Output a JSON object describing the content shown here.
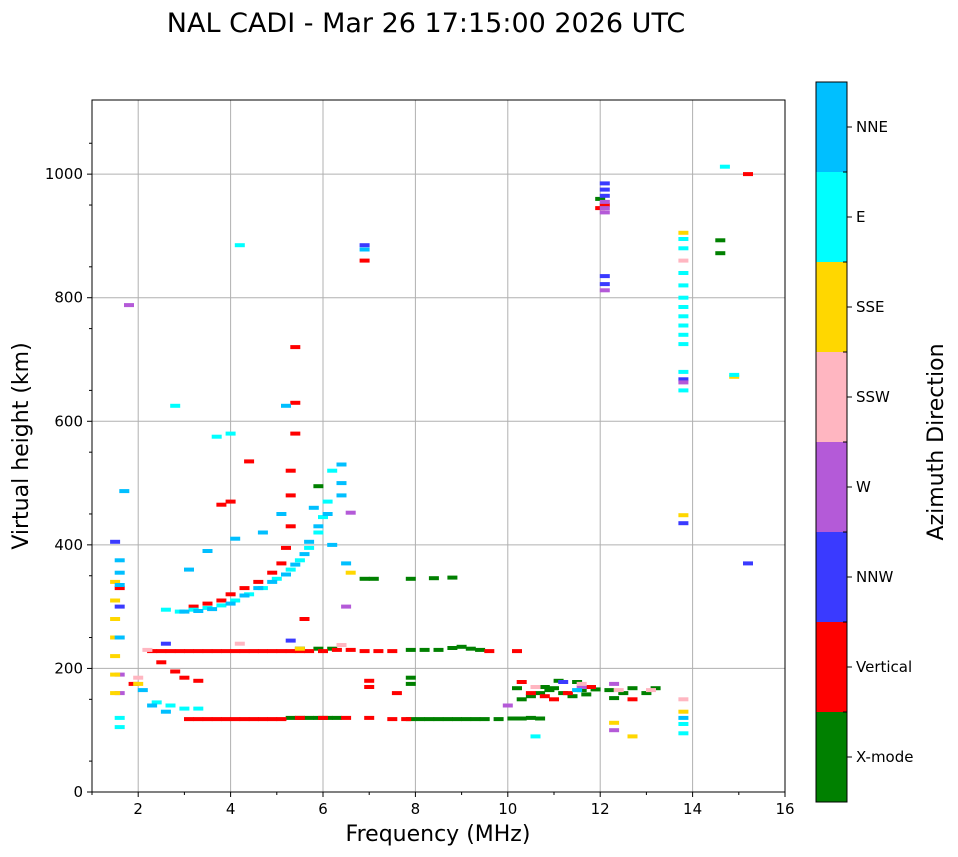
{
  "chart_data": {
    "type": "scatter",
    "title": "NAL CADI - Mar 26 17:15:00 2026 UTC",
    "xlabel": "Frequency (MHz)",
    "ylabel": "Virtual height (km)",
    "xlim": [
      1,
      16
    ],
    "ylim": [
      0,
      1120
    ],
    "xticks": [
      "2",
      "4",
      "6",
      "8",
      "10",
      "12",
      "14",
      "16"
    ],
    "yticks": [
      "0",
      "200",
      "400",
      "600",
      "800",
      "1000"
    ],
    "grid": true,
    "colorbar": {
      "title": "Azimuth Direction",
      "categories": [
        "X-mode",
        "Vertical",
        "NNW",
        "W",
        "SSW",
        "SSE",
        "E",
        "NNE"
      ],
      "colors": [
        "#008000",
        "#ff0000",
        "#3a3aff",
        "#b45ad8",
        "#ffb6c1",
        "#ffd700",
        "#00ffff",
        "#00bfff"
      ]
    },
    "series": [
      {
        "name": "X-mode",
        "color": "#008000",
        "points": [
          [
            5.3,
            120
          ],
          [
            5.5,
            120
          ],
          [
            5.7,
            120
          ],
          [
            5.9,
            120
          ],
          [
            6.1,
            120
          ],
          [
            6.3,
            120
          ],
          [
            7.9,
            118
          ],
          [
            8.1,
            118
          ],
          [
            8.3,
            118
          ],
          [
            8.5,
            118
          ],
          [
            8.7,
            118
          ],
          [
            8.9,
            118
          ],
          [
            9.1,
            118
          ],
          [
            9.3,
            118
          ],
          [
            9.5,
            118
          ],
          [
            9.8,
            118
          ],
          [
            10.1,
            119
          ],
          [
            10.3,
            119
          ],
          [
            10.5,
            120
          ],
          [
            10.7,
            119
          ],
          [
            7.9,
            230
          ],
          [
            8.2,
            230
          ],
          [
            8.5,
            230
          ],
          [
            8.8,
            233
          ],
          [
            9.0,
            235
          ],
          [
            9.2,
            232
          ],
          [
            9.4,
            230
          ],
          [
            5.5,
            232
          ],
          [
            5.9,
            232
          ],
          [
            6.2,
            232
          ],
          [
            10.3,
            150
          ],
          [
            10.5,
            155
          ],
          [
            10.7,
            160
          ],
          [
            10.8,
            170
          ],
          [
            10.9,
            165
          ],
          [
            11.0,
            168
          ],
          [
            11.2,
            160
          ],
          [
            11.4,
            155
          ],
          [
            11.6,
            165
          ],
          [
            11.7,
            158
          ],
          [
            11.9,
            166
          ],
          [
            12.2,
            165
          ],
          [
            12.3,
            152
          ],
          [
            12.5,
            160
          ],
          [
            12.7,
            168
          ],
          [
            13.0,
            160
          ],
          [
            13.2,
            168
          ],
          [
            6.9,
            345
          ],
          [
            7.1,
            345
          ],
          [
            7.9,
            345
          ],
          [
            8.4,
            346
          ],
          [
            8.8,
            347
          ],
          [
            5.9,
            495
          ],
          [
            11.1,
            180
          ],
          [
            11.5,
            178
          ],
          [
            7.9,
            185
          ],
          [
            7.9,
            175
          ],
          [
            12.0,
            960
          ],
          [
            14.6,
            893
          ],
          [
            14.6,
            872
          ],
          [
            10.2,
            168
          ]
        ]
      },
      {
        "name": "Vertical",
        "color": "#ff0000",
        "points": [
          [
            2.3,
            228
          ],
          [
            2.5,
            228
          ],
          [
            2.7,
            228
          ],
          [
            2.9,
            228
          ],
          [
            3.1,
            228
          ],
          [
            3.3,
            228
          ],
          [
            3.5,
            228
          ],
          [
            3.7,
            228
          ],
          [
            3.9,
            228
          ],
          [
            4.1,
            228
          ],
          [
            4.3,
            228
          ],
          [
            4.5,
            228
          ],
          [
            4.7,
            228
          ],
          [
            4.9,
            228
          ],
          [
            5.1,
            228
          ],
          [
            5.3,
            228
          ],
          [
            5.5,
            228
          ],
          [
            5.7,
            228
          ],
          [
            6.0,
            228
          ],
          [
            6.3,
            230
          ],
          [
            6.6,
            230
          ],
          [
            6.9,
            228
          ],
          [
            7.2,
            228
          ],
          [
            7.5,
            228
          ],
          [
            9.6,
            228
          ],
          [
            10.2,
            228
          ],
          [
            3.1,
            118
          ],
          [
            3.3,
            118
          ],
          [
            3.5,
            118
          ],
          [
            3.7,
            118
          ],
          [
            3.9,
            118
          ],
          [
            4.1,
            118
          ],
          [
            4.3,
            118
          ],
          [
            4.5,
            118
          ],
          [
            4.7,
            118
          ],
          [
            4.9,
            118
          ],
          [
            5.1,
            118
          ],
          [
            5.5,
            120
          ],
          [
            6.0,
            120
          ],
          [
            6.5,
            120
          ],
          [
            7.0,
            120
          ],
          [
            7.5,
            118
          ],
          [
            7.8,
            118
          ],
          [
            2.5,
            210
          ],
          [
            2.8,
            195
          ],
          [
            3.0,
            185
          ],
          [
            3.2,
            300
          ],
          [
            3.5,
            305
          ],
          [
            3.8,
            310
          ],
          [
            4.0,
            320
          ],
          [
            4.3,
            330
          ],
          [
            4.6,
            340
          ],
          [
            4.9,
            355
          ],
          [
            5.1,
            370
          ],
          [
            5.2,
            395
          ],
          [
            5.3,
            430
          ],
          [
            5.3,
            480
          ],
          [
            5.3,
            520
          ],
          [
            5.4,
            580
          ],
          [
            5.4,
            630
          ],
          [
            5.4,
            720
          ],
          [
            4.4,
            535
          ],
          [
            3.3,
            180
          ],
          [
            3.8,
            465
          ],
          [
            4.0,
            470
          ],
          [
            6.9,
            860
          ],
          [
            12.1,
            950
          ],
          [
            12.0,
            945
          ],
          [
            15.2,
            1000
          ],
          [
            10.3,
            178
          ],
          [
            10.5,
            160
          ],
          [
            10.8,
            155
          ],
          [
            11.0,
            150
          ],
          [
            11.3,
            160
          ],
          [
            11.8,
            170
          ],
          [
            12.7,
            150
          ],
          [
            7.0,
            180
          ],
          [
            7.0,
            170
          ],
          [
            7.6,
            160
          ],
          [
            1.6,
            330
          ],
          [
            1.9,
            175
          ],
          [
            5.6,
            280
          ]
        ]
      },
      {
        "name": "NNW",
        "color": "#3a3aff",
        "points": [
          [
            1.5,
            405
          ],
          [
            6.9,
            885
          ],
          [
            12.1,
            985
          ],
          [
            12.1,
            975
          ],
          [
            12.1,
            965
          ],
          [
            12.1,
            835
          ],
          [
            12.1,
            822
          ],
          [
            13.8,
            668
          ],
          [
            13.8,
            435
          ],
          [
            15.2,
            370
          ],
          [
            5.3,
            245
          ],
          [
            2.6,
            240
          ],
          [
            11.2,
            178
          ],
          [
            1.6,
            300
          ]
        ]
      },
      {
        "name": "W",
        "color": "#b45ad8",
        "points": [
          [
            1.8,
            788
          ],
          [
            12.1,
            955
          ],
          [
            12.1,
            945
          ],
          [
            12.1,
            938
          ],
          [
            12.1,
            812
          ],
          [
            12.3,
            100
          ],
          [
            12.3,
            175
          ],
          [
            6.5,
            300
          ],
          [
            6.6,
            452
          ],
          [
            13.8,
            663
          ],
          [
            1.6,
            190
          ],
          [
            1.6,
            160
          ],
          [
            10.0,
            140
          ],
          [
            11.6,
            170
          ]
        ]
      },
      {
        "name": "SSW",
        "color": "#ffb6c1",
        "points": [
          [
            13.8,
            150
          ],
          [
            13.8,
            860
          ],
          [
            12.4,
            165
          ],
          [
            11.6,
            175
          ],
          [
            6.4,
            238
          ],
          [
            4.2,
            240
          ],
          [
            2.0,
            185
          ],
          [
            2.2,
            230
          ],
          [
            13.1,
            165
          ],
          [
            10.6,
            170
          ]
        ]
      },
      {
        "name": "SSE",
        "color": "#ffd700",
        "points": [
          [
            1.5,
            340
          ],
          [
            1.5,
            310
          ],
          [
            1.5,
            280
          ],
          [
            1.5,
            250
          ],
          [
            1.5,
            220
          ],
          [
            1.5,
            190
          ],
          [
            1.5,
            160
          ],
          [
            13.8,
            905
          ],
          [
            13.8,
            448
          ],
          [
            13.8,
            130
          ],
          [
            14.9,
            672
          ],
          [
            12.7,
            90
          ],
          [
            6.6,
            355
          ],
          [
            5.5,
            232
          ],
          [
            12.3,
            112
          ],
          [
            2.0,
            175
          ]
        ]
      },
      {
        "name": "E",
        "color": "#00ffff",
        "points": [
          [
            13.8,
            895
          ],
          [
            13.8,
            880
          ],
          [
            13.8,
            840
          ],
          [
            13.8,
            820
          ],
          [
            13.8,
            800
          ],
          [
            13.8,
            785
          ],
          [
            13.8,
            770
          ],
          [
            13.8,
            755
          ],
          [
            13.8,
            740
          ],
          [
            13.8,
            725
          ],
          [
            13.8,
            680
          ],
          [
            13.8,
            650
          ],
          [
            13.8,
            110
          ],
          [
            13.8,
            95
          ],
          [
            14.7,
            1012
          ],
          [
            14.9,
            675
          ],
          [
            2.6,
            295
          ],
          [
            2.9,
            292
          ],
          [
            3.2,
            295
          ],
          [
            3.5,
            298
          ],
          [
            3.8,
            302
          ],
          [
            4.1,
            310
          ],
          [
            4.4,
            320
          ],
          [
            4.7,
            330
          ],
          [
            5.0,
            345
          ],
          [
            5.3,
            360
          ],
          [
            5.5,
            375
          ],
          [
            5.7,
            395
          ],
          [
            5.9,
            420
          ],
          [
            6.0,
            445
          ],
          [
            6.1,
            470
          ],
          [
            6.2,
            520
          ],
          [
            2.4,
            145
          ],
          [
            2.7,
            140
          ],
          [
            3.0,
            135
          ],
          [
            3.3,
            135
          ],
          [
            4.2,
            885
          ],
          [
            2.8,
            625
          ],
          [
            3.7,
            575
          ],
          [
            4.0,
            580
          ],
          [
            10.6,
            90
          ],
          [
            1.6,
            120
          ],
          [
            1.6,
            105
          ]
        ]
      },
      {
        "name": "NNE",
        "color": "#00bfff",
        "points": [
          [
            3.0,
            292
          ],
          [
            3.3,
            293
          ],
          [
            3.6,
            296
          ],
          [
            4.0,
            305
          ],
          [
            4.3,
            318
          ],
          [
            4.6,
            330
          ],
          [
            4.9,
            340
          ],
          [
            5.2,
            352
          ],
          [
            5.4,
            368
          ],
          [
            5.6,
            385
          ],
          [
            5.7,
            405
          ],
          [
            5.9,
            430
          ],
          [
            6.1,
            450
          ],
          [
            6.4,
            480
          ],
          [
            6.4,
            500
          ],
          [
            6.4,
            530
          ],
          [
            6.5,
            370
          ],
          [
            6.2,
            400
          ],
          [
            5.8,
            460
          ],
          [
            5.1,
            450
          ],
          [
            4.7,
            420
          ],
          [
            4.1,
            410
          ],
          [
            3.5,
            390
          ],
          [
            3.1,
            360
          ],
          [
            2.3,
            140
          ],
          [
            2.6,
            130
          ],
          [
            1.6,
            375
          ],
          [
            1.6,
            355
          ],
          [
            1.6,
            335
          ],
          [
            1.6,
            250
          ],
          [
            5.2,
            625
          ],
          [
            6.9,
            878
          ],
          [
            13.8,
            120
          ],
          [
            11.5,
            165
          ],
          [
            1.7,
            487
          ],
          [
            2.1,
            165
          ]
        ]
      }
    ]
  }
}
